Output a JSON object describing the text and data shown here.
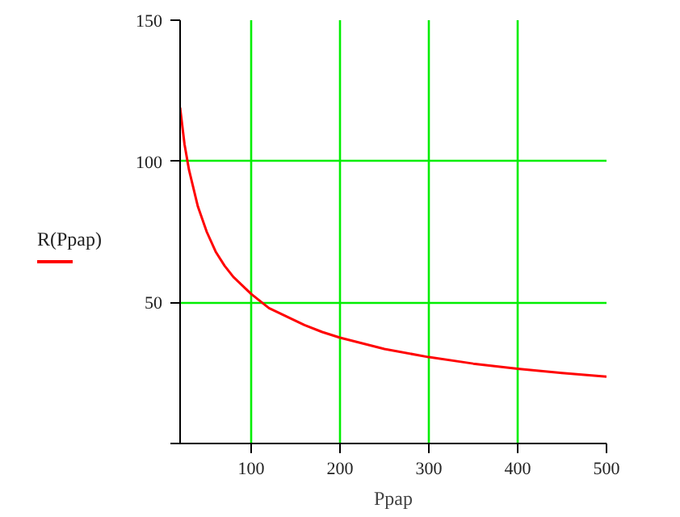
{
  "chart_data": {
    "type": "line",
    "xlabel": "Ppap",
    "x": [
      20,
      25,
      30,
      40,
      50,
      60,
      70,
      80,
      90,
      100,
      120,
      140,
      160,
      180,
      200,
      250,
      300,
      350,
      400,
      450,
      500
    ],
    "series": [
      {
        "name": "R(Ppap)",
        "color": "#ff0000",
        "values": [
          119,
          106,
          97,
          84,
          75,
          68,
          63,
          59,
          56,
          53,
          48,
          45,
          42,
          39.5,
          37.5,
          33.5,
          30.6,
          28.3,
          26.5,
          25,
          23.7
        ]
      }
    ],
    "xlim": [
      20,
      500
    ],
    "ylim": [
      0,
      150
    ],
    "xticks": [
      100,
      200,
      300,
      400,
      500
    ],
    "yticks": [
      {
        "value": 0,
        "label": null
      },
      50,
      100,
      150
    ],
    "grid": true,
    "legend": "left",
    "line_style": "solid",
    "marker": "none"
  }
}
